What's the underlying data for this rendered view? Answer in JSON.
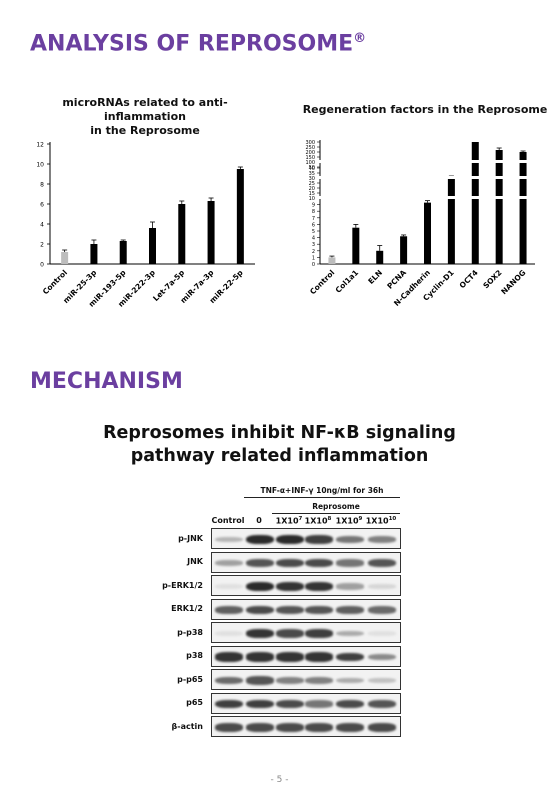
{
  "section1": {
    "title": "ANALYSIS OF REPROSOME",
    "mark": "®"
  },
  "section2": {
    "title": "MECHANISM"
  },
  "chart_data": [
    {
      "type": "bar",
      "title_lines": [
        "microRNAs related to anti-inflammation",
        "in the Reprosome"
      ],
      "categories": [
        "Control",
        "miR-25-3p",
        "miR-193-5p",
        "miR-222-3p",
        "Let-7a-5p",
        "miR-7a-3p",
        "miR-22-5p"
      ],
      "values": [
        1.2,
        2.0,
        2.3,
        3.6,
        6.0,
        6.3,
        9.5
      ],
      "errors": [
        0.2,
        0.4,
        0.1,
        0.6,
        0.3,
        0.3,
        0.2
      ],
      "colors": [
        "#bdbdbd",
        "#000000",
        "#000000",
        "#000000",
        "#000000",
        "#000000",
        "#000000"
      ],
      "yticks": [
        0,
        2,
        4,
        6,
        8,
        10,
        12
      ],
      "ylim": [
        0,
        12
      ],
      "grid": false
    },
    {
      "type": "bar",
      "title": "Regeneration factors in the Reprosome",
      "categories": [
        "Control",
        "Col1a1",
        "ELN",
        "PCNA",
        "N-Cadherin",
        "Cyclin-D1",
        "OCT4",
        "SOX2",
        "NANOG"
      ],
      "values": [
        1,
        5.5,
        2,
        4.2,
        9.3,
        30,
        300,
        220,
        200
      ],
      "errors": [
        0.2,
        0.5,
        0.8,
        0.2,
        0.3,
        2,
        0,
        20,
        10
      ],
      "colors": [
        "#bdbdbd",
        "#000000",
        "#000000",
        "#000000",
        "#000000",
        "#000000",
        "#000000",
        "#000000",
        "#000000"
      ],
      "yticks": [
        0,
        1,
        2,
        3,
        4,
        5,
        6,
        7,
        8,
        9,
        10,
        15,
        20,
        25,
        30,
        35,
        40,
        50,
        100,
        150,
        200,
        250,
        300
      ],
      "ylim": [
        0,
        300
      ],
      "axis_breaks": [
        10,
        30,
        100
      ],
      "grid": false
    }
  ],
  "western_blot": {
    "title_lines": [
      "Reprosomes inhibit NF-κB signaling",
      "pathway related inflammation"
    ],
    "treatment": "TNF-α+INF-γ 10ng/ml for 36h",
    "group": "Reprosome",
    "lanes": [
      {
        "base": "Control",
        "exp": ""
      },
      {
        "base": "0",
        "exp": ""
      },
      {
        "base": "1X10",
        "exp": "7"
      },
      {
        "base": "1X10",
        "exp": "8"
      },
      {
        "base": "1X10",
        "exp": "9"
      },
      {
        "base": "1X10",
        "exp": "10"
      }
    ],
    "rows": [
      {
        "label": "p-JNK",
        "intensity": [
          0.25,
          0.9,
          0.9,
          0.8,
          0.55,
          0.5
        ]
      },
      {
        "label": "JNK",
        "intensity": [
          0.35,
          0.7,
          0.75,
          0.75,
          0.55,
          0.7
        ]
      },
      {
        "label": "p-ERK1/2",
        "intensity": [
          0.05,
          0.9,
          0.85,
          0.85,
          0.35,
          0.1
        ]
      },
      {
        "label": "ERK1/2",
        "intensity": [
          0.65,
          0.75,
          0.7,
          0.7,
          0.65,
          0.6
        ]
      },
      {
        "label": "p-p38",
        "intensity": [
          0.05,
          0.85,
          0.75,
          0.8,
          0.3,
          0.05
        ]
      },
      {
        "label": "p38",
        "intensity": [
          0.85,
          0.85,
          0.85,
          0.85,
          0.8,
          0.45
        ]
      },
      {
        "label": "p-p65",
        "intensity": [
          0.6,
          0.7,
          0.5,
          0.5,
          0.3,
          0.2
        ]
      },
      {
        "label": "p65",
        "intensity": [
          0.8,
          0.8,
          0.75,
          0.55,
          0.75,
          0.7
        ]
      },
      {
        "label": "β-actin",
        "intensity": [
          0.75,
          0.75,
          0.75,
          0.75,
          0.75,
          0.75
        ]
      }
    ]
  },
  "footer": {
    "page": "- 5 -"
  }
}
